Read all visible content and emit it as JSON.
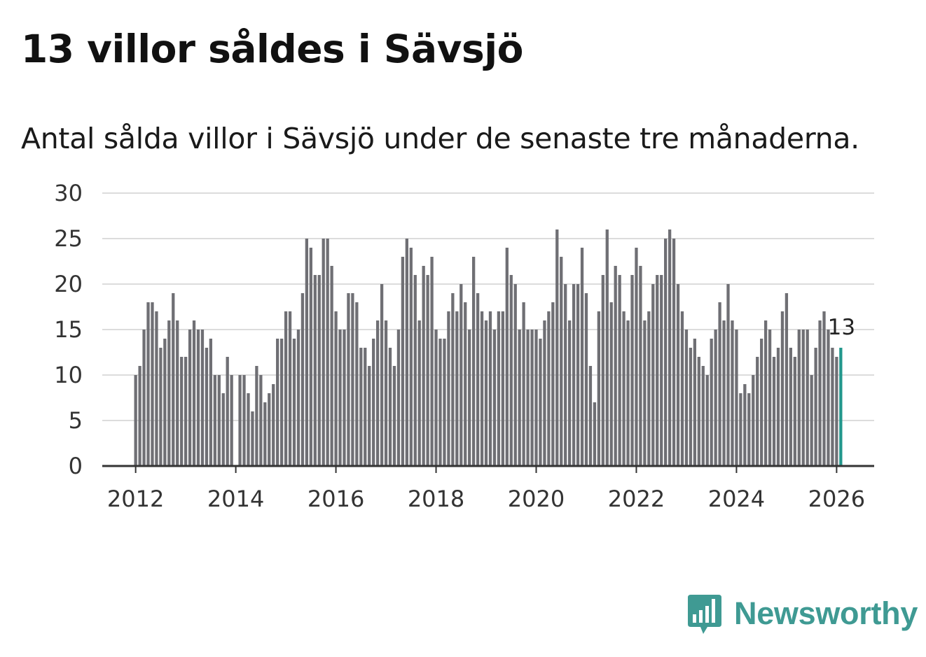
{
  "title": "13 villor såldes i Sävsjö",
  "subtitle": "Antal sålda villor i Sävsjö under de senaste tre månaderna.",
  "brand": {
    "name": "Newsworthy",
    "icon": "newsworthy-logo-icon",
    "color": "#3f9a93"
  },
  "chart_data": {
    "type": "bar",
    "title": "13 villor såldes i Sävsjö",
    "subtitle": "Antal sålda villor i Sävsjö under de senaste tre månaderna.",
    "xlabel": "",
    "ylabel": "",
    "ylim": [
      0,
      30
    ],
    "yticks": [
      0,
      5,
      10,
      15,
      20,
      25,
      30
    ],
    "xticks": [
      "2012",
      "2014",
      "2016",
      "2018",
      "2020",
      "2022",
      "2024",
      "2026"
    ],
    "xlim_months": [
      -8,
      177
    ],
    "start": "2012-01",
    "bar_color": "#6f6f74",
    "highlight_color": "#22978c",
    "highlight_label": "13",
    "grid": true,
    "values": [
      10,
      11,
      15,
      18,
      18,
      17,
      13,
      14,
      16,
      19,
      16,
      12,
      12,
      15,
      16,
      15,
      15,
      13,
      14,
      10,
      10,
      8,
      12,
      10,
      0,
      10,
      10,
      8,
      6,
      11,
      10,
      7,
      8,
      9,
      14,
      14,
      17,
      17,
      14,
      15,
      19,
      25,
      24,
      21,
      21,
      25,
      25,
      22,
      17,
      15,
      15,
      19,
      19,
      18,
      13,
      13,
      11,
      14,
      16,
      20,
      16,
      13,
      11,
      15,
      23,
      25,
      24,
      21,
      16,
      22,
      21,
      23,
      15,
      14,
      14,
      17,
      19,
      17,
      20,
      18,
      15,
      23,
      19,
      17,
      16,
      17,
      15,
      17,
      17,
      24,
      21,
      20,
      15,
      18,
      15,
      15,
      15,
      14,
      16,
      17,
      18,
      26,
      23,
      20,
      16,
      20,
      20,
      24,
      19,
      11,
      7,
      17,
      21,
      26,
      18,
      22,
      21,
      17,
      16,
      21,
      24,
      22,
      16,
      17,
      20,
      21,
      21,
      25,
      26,
      25,
      20,
      17,
      15,
      13,
      14,
      12,
      11,
      10,
      14,
      15,
      18,
      16,
      20,
      16,
      15,
      8,
      9,
      8,
      10,
      12,
      14,
      16,
      15,
      12,
      13,
      17,
      19,
      13,
      12,
      15,
      15,
      15,
      10,
      13,
      16,
      17,
      15,
      13,
      12,
      13
    ]
  }
}
